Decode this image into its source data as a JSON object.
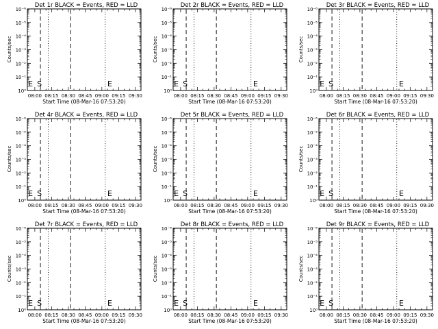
{
  "chart_data": [
    {
      "type": "line",
      "title": "Det 1r BLACK = Events, RED = LLD",
      "ylabel": "Counts/sec",
      "xlabel": "Start Time (08-Mar-16 07:53:20)",
      "x_tick_labels": [
        "08:00",
        "08:15",
        "08:30",
        "08:45",
        "09:00",
        "09:15",
        "09:30"
      ],
      "y_tick_labels": [
        "10⁰",
        "10⁻¹",
        "10⁻²",
        "10⁻³",
        "10⁻⁴",
        "10⁻⁵",
        "10⁻⁶"
      ],
      "ylim": [
        1e-06,
        1
      ],
      "yscale": "log",
      "xlim": [
        "07:53:20",
        "09:35"
      ],
      "markers": [
        {
          "label": "E",
          "time": "07:54"
        },
        {
          "label": "S",
          "time": "08:02"
        },
        {
          "label": "",
          "time": "08:05",
          "style": "dashed"
        },
        {
          "label": "",
          "time": "08:12",
          "style": "dotted"
        },
        {
          "label": "",
          "time": "08:32",
          "style": "dashed"
        },
        {
          "label": "",
          "time": "09:03",
          "style": "dotted"
        },
        {
          "label": "E",
          "time": "09:05"
        },
        {
          "label": "",
          "time": "09:35",
          "style": "dotted"
        }
      ],
      "series": []
    },
    {
      "type": "line",
      "title": "Det 2r BLACK = Events, RED = LLD",
      "ylabel": "Counts/sec",
      "xlabel": "Start Time (08-Mar-16 07:53:20)",
      "x_tick_labels": [
        "08:00",
        "08:15",
        "08:30",
        "08:45",
        "09:00",
        "09:15",
        "09:30"
      ],
      "y_tick_labels": [
        "10⁰",
        "10⁻¹",
        "10⁻²",
        "10⁻³",
        "10⁻⁴",
        "10⁻⁵",
        "10⁻⁶"
      ],
      "ylim": [
        1e-06,
        1
      ],
      "yscale": "log",
      "xlim": [
        "07:53:20",
        "09:35"
      ],
      "markers": [
        {
          "label": "E",
          "time": "07:54"
        },
        {
          "label": "S",
          "time": "08:02"
        },
        {
          "label": "",
          "time": "08:05",
          "style": "dashed"
        },
        {
          "label": "",
          "time": "08:12",
          "style": "dotted"
        },
        {
          "label": "",
          "time": "08:32",
          "style": "dashed"
        },
        {
          "label": "",
          "time": "09:03",
          "style": "dotted"
        },
        {
          "label": "E",
          "time": "09:05"
        },
        {
          "label": "",
          "time": "09:35",
          "style": "dotted"
        }
      ],
      "series": []
    },
    {
      "type": "line",
      "title": "Det 3r BLACK = Events, RED = LLD",
      "ylabel": "Counts/sec",
      "xlabel": "Start Time (08-Mar-16 07:53:20)",
      "x_tick_labels": [
        "08:00",
        "08:15",
        "08:30",
        "08:45",
        "09:00",
        "09:15",
        "09:30"
      ],
      "y_tick_labels": [
        "10⁰",
        "10⁻¹",
        "10⁻²",
        "10⁻³",
        "10⁻⁴",
        "10⁻⁵",
        "10⁻⁶"
      ],
      "ylim": [
        1e-06,
        1
      ],
      "yscale": "log",
      "xlim": [
        "07:53:20",
        "09:35"
      ],
      "markers": [
        {
          "label": "E",
          "time": "07:54"
        },
        {
          "label": "S",
          "time": "08:02"
        },
        {
          "label": "",
          "time": "08:05",
          "style": "dashed"
        },
        {
          "label": "",
          "time": "08:12",
          "style": "dotted"
        },
        {
          "label": "",
          "time": "08:32",
          "style": "dashed"
        },
        {
          "label": "",
          "time": "09:03",
          "style": "dotted"
        },
        {
          "label": "E",
          "time": "09:05"
        },
        {
          "label": "",
          "time": "09:35",
          "style": "dotted"
        }
      ],
      "series": []
    },
    {
      "type": "line",
      "title": "Det 4r BLACK = Events, RED = LLD",
      "ylabel": "Counts/sec",
      "xlabel": "Start Time (08-Mar-16 07:53:20)",
      "x_tick_labels": [
        "08:00",
        "08:15",
        "08:30",
        "08:45",
        "09:00",
        "09:15",
        "09:30"
      ],
      "y_tick_labels": [
        "10⁰",
        "10⁻¹",
        "10⁻²",
        "10⁻³",
        "10⁻⁴",
        "10⁻⁵",
        "10⁻⁶"
      ],
      "ylim": [
        1e-06,
        1
      ],
      "yscale": "log",
      "xlim": [
        "07:53:20",
        "09:35"
      ],
      "markers": [
        {
          "label": "E",
          "time": "07:54"
        },
        {
          "label": "S",
          "time": "08:02"
        },
        {
          "label": "",
          "time": "08:05",
          "style": "dashed"
        },
        {
          "label": "",
          "time": "08:12",
          "style": "dotted"
        },
        {
          "label": "",
          "time": "08:32",
          "style": "dashed"
        },
        {
          "label": "",
          "time": "09:03",
          "style": "dotted"
        },
        {
          "label": "E",
          "time": "09:05"
        },
        {
          "label": "",
          "time": "09:35",
          "style": "dotted"
        }
      ],
      "series": []
    },
    {
      "type": "line",
      "title": "Det 5r BLACK = Events, RED = LLD",
      "ylabel": "Counts/sec",
      "xlabel": "Start Time (08-Mar-16 07:53:20)",
      "x_tick_labels": [
        "08:00",
        "08:15",
        "08:30",
        "08:45",
        "09:00",
        "09:15",
        "09:30"
      ],
      "y_tick_labels": [
        "10⁰",
        "10⁻¹",
        "10⁻²",
        "10⁻³",
        "10⁻⁴",
        "10⁻⁵",
        "10⁻⁶"
      ],
      "ylim": [
        1e-06,
        1
      ],
      "yscale": "log",
      "xlim": [
        "07:53:20",
        "09:35"
      ],
      "markers": [
        {
          "label": "E",
          "time": "07:54"
        },
        {
          "label": "S",
          "time": "08:02"
        },
        {
          "label": "",
          "time": "08:05",
          "style": "dashed"
        },
        {
          "label": "",
          "time": "08:12",
          "style": "dotted"
        },
        {
          "label": "",
          "time": "08:32",
          "style": "dashed"
        },
        {
          "label": "",
          "time": "09:03",
          "style": "dotted"
        },
        {
          "label": "E",
          "time": "09:05"
        },
        {
          "label": "",
          "time": "09:35",
          "style": "dotted"
        }
      ],
      "series": []
    },
    {
      "type": "line",
      "title": "Det 6r BLACK = Events, RED = LLD",
      "ylabel": "Counts/sec",
      "xlabel": "Start Time (08-Mar-16 07:53:20)",
      "x_tick_labels": [
        "08:00",
        "08:15",
        "08:30",
        "08:45",
        "09:00",
        "09:15",
        "09:30"
      ],
      "y_tick_labels": [
        "10⁰",
        "10⁻¹",
        "10⁻²",
        "10⁻³",
        "10⁻⁴",
        "10⁻⁵",
        "10⁻⁶"
      ],
      "ylim": [
        1e-06,
        1
      ],
      "yscale": "log",
      "xlim": [
        "07:53:20",
        "09:35"
      ],
      "markers": [
        {
          "label": "E",
          "time": "07:54"
        },
        {
          "label": "S",
          "time": "08:02"
        },
        {
          "label": "",
          "time": "08:05",
          "style": "dashed"
        },
        {
          "label": "",
          "time": "08:12",
          "style": "dotted"
        },
        {
          "label": "",
          "time": "08:32",
          "style": "dashed"
        },
        {
          "label": "",
          "time": "09:03",
          "style": "dotted"
        },
        {
          "label": "E",
          "time": "09:05"
        },
        {
          "label": "",
          "time": "09:35",
          "style": "dotted"
        }
      ],
      "series": []
    },
    {
      "type": "line",
      "title": "Det 7r BLACK = Events, RED = LLD",
      "ylabel": "Counts/sec",
      "xlabel": "Start Time (08-Mar-16 07:53:20)",
      "x_tick_labels": [
        "08:00",
        "08:15",
        "08:30",
        "08:45",
        "09:00",
        "09:15",
        "09:30"
      ],
      "y_tick_labels": [
        "10⁰",
        "10⁻¹",
        "10⁻²",
        "10⁻³",
        "10⁻⁴",
        "10⁻⁵",
        "10⁻⁶"
      ],
      "ylim": [
        1e-06,
        1
      ],
      "yscale": "log",
      "xlim": [
        "07:53:20",
        "09:35"
      ],
      "markers": [
        {
          "label": "E",
          "time": "07:54"
        },
        {
          "label": "S",
          "time": "08:02"
        },
        {
          "label": "",
          "time": "08:05",
          "style": "dashed"
        },
        {
          "label": "",
          "time": "08:12",
          "style": "dotted"
        },
        {
          "label": "",
          "time": "08:32",
          "style": "dashed"
        },
        {
          "label": "",
          "time": "09:03",
          "style": "dotted"
        },
        {
          "label": "E",
          "time": "09:05"
        },
        {
          "label": "",
          "time": "09:35",
          "style": "dotted"
        }
      ],
      "series": []
    },
    {
      "type": "line",
      "title": "Det 8r BLACK = Events, RED = LLD",
      "ylabel": "Counts/sec",
      "xlabel": "Start Time (08-Mar-16 07:53:20)",
      "x_tick_labels": [
        "08:00",
        "08:15",
        "08:30",
        "08:45",
        "09:00",
        "09:15",
        "09:30"
      ],
      "y_tick_labels": [
        "10⁰",
        "10⁻¹",
        "10⁻²",
        "10⁻³",
        "10⁻⁴",
        "10⁻⁵",
        "10⁻⁶"
      ],
      "ylim": [
        1e-06,
        1
      ],
      "yscale": "log",
      "xlim": [
        "07:53:20",
        "09:35"
      ],
      "markers": [
        {
          "label": "E",
          "time": "07:54"
        },
        {
          "label": "S",
          "time": "08:02"
        },
        {
          "label": "",
          "time": "08:05",
          "style": "dashed"
        },
        {
          "label": "",
          "time": "08:12",
          "style": "dotted"
        },
        {
          "label": "",
          "time": "08:32",
          "style": "dashed"
        },
        {
          "label": "",
          "time": "09:03",
          "style": "dotted"
        },
        {
          "label": "E",
          "time": "09:05"
        },
        {
          "label": "",
          "time": "09:35",
          "style": "dotted"
        }
      ],
      "series": []
    },
    {
      "type": "line",
      "title": "Det 9r BLACK = Events, RED = LLD",
      "ylabel": "Counts/sec",
      "xlabel": "Start Time (08-Mar-16 07:53:20)",
      "x_tick_labels": [
        "08:00",
        "08:15",
        "08:30",
        "08:45",
        "09:00",
        "09:15",
        "09:30"
      ],
      "y_tick_labels": [
        "10⁰",
        "10⁻¹",
        "10⁻²",
        "10⁻³",
        "10⁻⁴",
        "10⁻⁵",
        "10⁻⁶"
      ],
      "ylim": [
        1e-06,
        1
      ],
      "yscale": "log",
      "xlim": [
        "07:53:20",
        "09:35"
      ],
      "markers": [
        {
          "label": "E",
          "time": "07:54"
        },
        {
          "label": "S",
          "time": "08:02"
        },
        {
          "label": "",
          "time": "08:05",
          "style": "dashed"
        },
        {
          "label": "",
          "time": "08:12",
          "style": "dotted"
        },
        {
          "label": "",
          "time": "08:32",
          "style": "dashed"
        },
        {
          "label": "",
          "time": "09:03",
          "style": "dotted"
        },
        {
          "label": "E",
          "time": "09:05"
        },
        {
          "label": "",
          "time": "09:35",
          "style": "dotted"
        }
      ],
      "series": []
    }
  ]
}
